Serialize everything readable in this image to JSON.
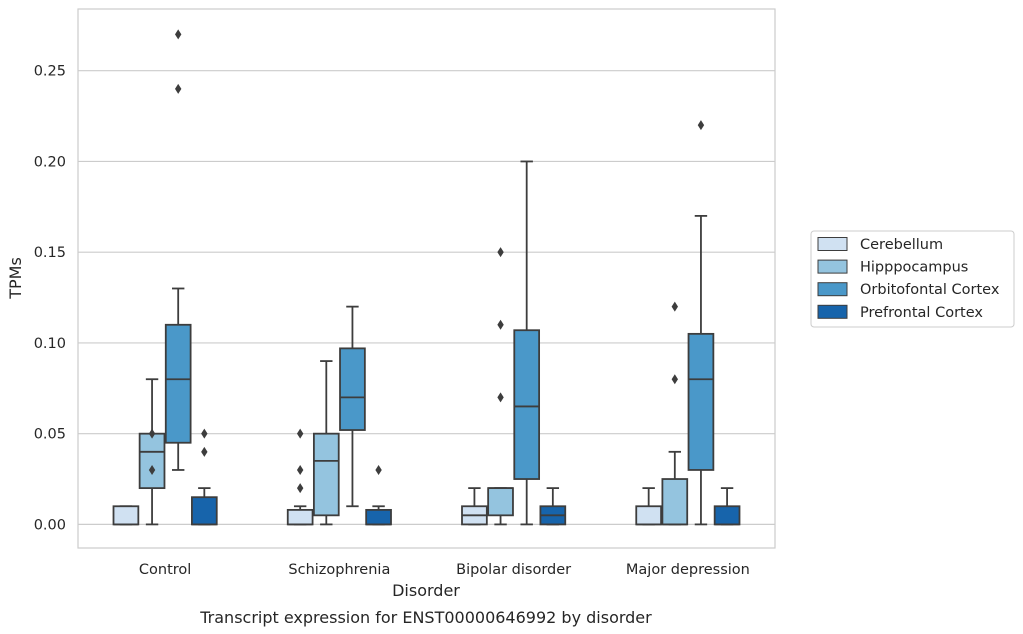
{
  "chart_data": {
    "type": "box",
    "title": "",
    "caption": "Transcript expression for ENST00000646992 by disorder",
    "xlabel": "Disorder",
    "ylabel": "TPMs",
    "ylim": [
      -0.013,
      0.284
    ],
    "yticks": [
      0.0,
      0.05,
      0.1,
      0.15,
      0.2,
      0.25
    ],
    "ytick_labels": [
      "0.00",
      "0.05",
      "0.10",
      "0.15",
      "0.20",
      "0.25"
    ],
    "grid": "horizontal",
    "legend_position": "right",
    "categories": [
      "Control",
      "Schizophrenia",
      "Bipolar disorder",
      "Major depression"
    ],
    "series": [
      {
        "name": "Cerebellum",
        "color": "#d0e1f2",
        "boxes": [
          {
            "whislo": 0.0,
            "q1": 0.0,
            "med": 0.0,
            "q3": 0.01,
            "whishi": 0.01,
            "fliers": []
          },
          {
            "whislo": 0.0,
            "q1": 0.0,
            "med": 0.0,
            "q3": 0.008,
            "whishi": 0.01,
            "fliers": [
              0.02,
              0.03,
              0.05
            ]
          },
          {
            "whislo": 0.0,
            "q1": 0.0,
            "med": 0.005,
            "q3": 0.01,
            "whishi": 0.02,
            "fliers": []
          },
          {
            "whislo": 0.0,
            "q1": 0.0,
            "med": 0.0,
            "q3": 0.01,
            "whishi": 0.02,
            "fliers": []
          }
        ]
      },
      {
        "name": "Hipppocampus",
        "color": "#94c4df",
        "boxes": [
          {
            "whislo": 0.0,
            "q1": 0.02,
            "med": 0.04,
            "q3": 0.05,
            "whishi": 0.08,
            "fliers": [
              0.03,
              0.05
            ]
          },
          {
            "whislo": 0.0,
            "q1": 0.005,
            "med": 0.035,
            "q3": 0.05,
            "whishi": 0.09,
            "fliers": []
          },
          {
            "whislo": 0.0,
            "q1": 0.005,
            "med": 0.02,
            "q3": 0.02,
            "whishi": 0.02,
            "fliers": [
              0.07,
              0.11,
              0.15
            ]
          },
          {
            "whislo": 0.0,
            "q1": 0.0,
            "med": 0.0,
            "q3": 0.025,
            "whishi": 0.04,
            "fliers": [
              0.08,
              0.12
            ]
          }
        ]
      },
      {
        "name": "Orbitofontal Cortex",
        "color": "#4a98c9",
        "boxes": [
          {
            "whislo": 0.03,
            "q1": 0.045,
            "med": 0.08,
            "q3": 0.11,
            "whishi": 0.13,
            "fliers": [
              0.24,
              0.27
            ]
          },
          {
            "whislo": 0.01,
            "q1": 0.052,
            "med": 0.07,
            "q3": 0.097,
            "whishi": 0.12,
            "fliers": []
          },
          {
            "whislo": 0.0,
            "q1": 0.025,
            "med": 0.065,
            "q3": 0.107,
            "whishi": 0.2,
            "fliers": []
          },
          {
            "whislo": 0.0,
            "q1": 0.03,
            "med": 0.08,
            "q3": 0.105,
            "whishi": 0.17,
            "fliers": [
              0.22
            ]
          }
        ]
      },
      {
        "name": "Prefrontal Cortex",
        "color": "#1764ab",
        "boxes": [
          {
            "whislo": 0.0,
            "q1": 0.0,
            "med": 0.0,
            "q3": 0.015,
            "whishi": 0.02,
            "fliers": [
              0.04,
              0.05
            ]
          },
          {
            "whislo": 0.0,
            "q1": 0.0,
            "med": 0.0,
            "q3": 0.008,
            "whishi": 0.01,
            "fliers": [
              0.03
            ]
          },
          {
            "whislo": 0.0,
            "q1": 0.0,
            "med": 0.005,
            "q3": 0.01,
            "whishi": 0.02,
            "fliers": []
          },
          {
            "whislo": 0.0,
            "q1": 0.0,
            "med": 0.0,
            "q3": 0.01,
            "whishi": 0.02,
            "fliers": []
          }
        ]
      }
    ]
  }
}
